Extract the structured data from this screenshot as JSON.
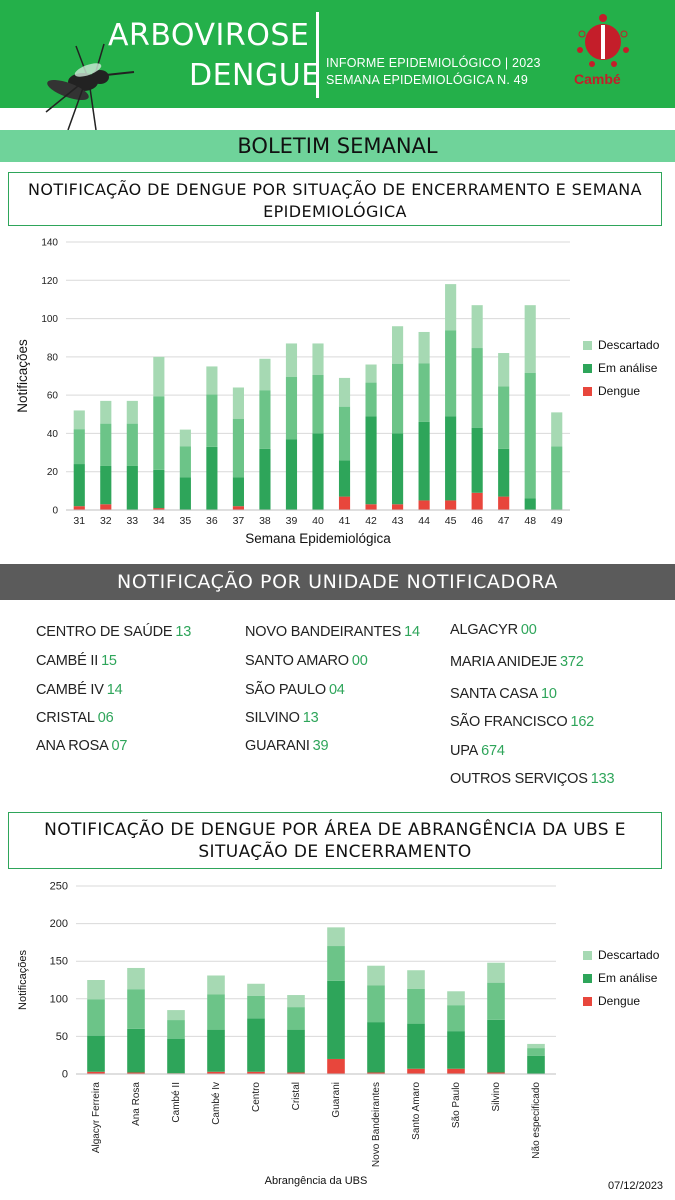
{
  "header": {
    "title_line1": "ARBOVIROSE",
    "title_line2": "DENGUE",
    "info_line1": "INFORME EPIDEMIOLÓGICO | 2023",
    "info_line2": "SEMANA EPIDEMIOLÓGICA  N. 49",
    "logo_text": "Cambé",
    "brand_green": "#24b04a",
    "brand_red": "#c41e2a"
  },
  "banner_title": "BOLETIM SEMANAL",
  "section1_title": "NOTIFICAÇÃO DE DENGUE POR SITUAÇÃO DE ENCERRAMENTO E SEMANA EPIDEMIOLÓGICA",
  "section2_title": "NOTIFICAÇÃO POR UNIDADE NOTIFICADORA",
  "section3_title": "NOTIFICAÇÃO DE DENGUE POR ÁREA DE ABRANGÊNCIA DA UBS E SITUAÇÃO DE ENCERRAMENTO",
  "units": [
    {
      "name": "CENTRO  DE SAÚDE",
      "value": "13"
    },
    {
      "name": "CAMBÉ II",
      "value": "15"
    },
    {
      "name": "CAMBÉ IV",
      "value": "14"
    },
    {
      "name": "CRISTAL",
      "value": "06"
    },
    {
      "name": "ANA ROSA",
      "value": "07"
    },
    {
      "name": "NOVO BANDEIRANTES",
      "value": "14"
    },
    {
      "name": "SANTO AMARO",
      "value": "00"
    },
    {
      "name": "SÃO PAULO",
      "value": "04"
    },
    {
      "name": "SILVINO",
      "value": "13"
    },
    {
      "name": "GUARANI",
      "value": "39"
    },
    {
      "name": "ALGACYR",
      "value": "00"
    },
    {
      "name": "MARIA ANIDEJE",
      "value": "372"
    },
    {
      "name": "SANTA CASA",
      "value": "10"
    },
    {
      "name": "SÃO FRANCISCO",
      "value": "162"
    },
    {
      "name": "UPA",
      "value": "674"
    },
    {
      "name": "OUTROS SERVIÇOS",
      "value": "133"
    }
  ],
  "date": "07/12/2023",
  "chart_data": [
    {
      "type": "bar",
      "stacked": true,
      "title": "",
      "xlabel": "Semana Epidemiológica",
      "ylabel": "Notificações",
      "ylim": [
        0,
        140
      ],
      "yticks": [
        0,
        20,
        40,
        60,
        80,
        100,
        120,
        140
      ],
      "grid": true,
      "legend": "right",
      "categories": [
        "31",
        "32",
        "33",
        "34",
        "35",
        "36",
        "37",
        "38",
        "39",
        "40",
        "41",
        "42",
        "43",
        "44",
        "45",
        "46",
        "47",
        "48",
        "49"
      ],
      "series": [
        {
          "name": "Dengue",
          "color": "#e8463c",
          "values": [
            2,
            3,
            0,
            1,
            0,
            0,
            2,
            0,
            0,
            0,
            7,
            3,
            3,
            5,
            5,
            9,
            7,
            0,
            0
          ]
        },
        {
          "name": "Em análise",
          "color": "#2ea55a",
          "values": [
            22,
            20,
            23,
            20,
            17,
            33,
            15,
            32,
            37,
            40,
            19,
            46,
            37,
            41,
            44,
            34,
            25,
            6,
            0
          ]
        },
        {
          "name": "Descartado",
          "color_top": "#a6d9b3",
          "color_dark": "#6cc488",
          "values": [
            28,
            34,
            34,
            59,
            25,
            42,
            47,
            47,
            50,
            47,
            43,
            27,
            56,
            47,
            69,
            64,
            50,
            101,
            51
          ]
        }
      ]
    },
    {
      "type": "bar",
      "stacked": true,
      "title": "",
      "xlabel": "Abrangência da UBS",
      "ylabel": "Notificações",
      "ylim": [
        0,
        250
      ],
      "yticks": [
        0,
        50,
        100,
        150,
        200,
        250
      ],
      "grid": true,
      "legend": "right",
      "categories": [
        "Algacyr Ferreira",
        "Ana Rosa",
        "Cambé II",
        "Cambé Iv",
        "Centro",
        "Cristal",
        "Guarani",
        "Novo Bandeirantes",
        "Santo Amaro",
        "São Paulo",
        "Silvino",
        "Não especificado"
      ],
      "series": [
        {
          "name": "Dengue",
          "color": "#e8463c",
          "values": [
            3,
            2,
            1,
            3,
            3,
            2,
            20,
            2,
            7,
            7,
            2,
            0
          ]
        },
        {
          "name": "Em análise",
          "color": "#2ea55a",
          "values": [
            48,
            58,
            46,
            56,
            71,
            57,
            104,
            67,
            60,
            50,
            70,
            24
          ]
        },
        {
          "name": "Descartado",
          "color_top": "#a6d9b3",
          "color_dark": "#6cc488",
          "values": [
            74,
            81,
            38,
            72,
            46,
            46,
            71,
            75,
            71,
            53,
            76,
            16
          ]
        }
      ]
    }
  ]
}
